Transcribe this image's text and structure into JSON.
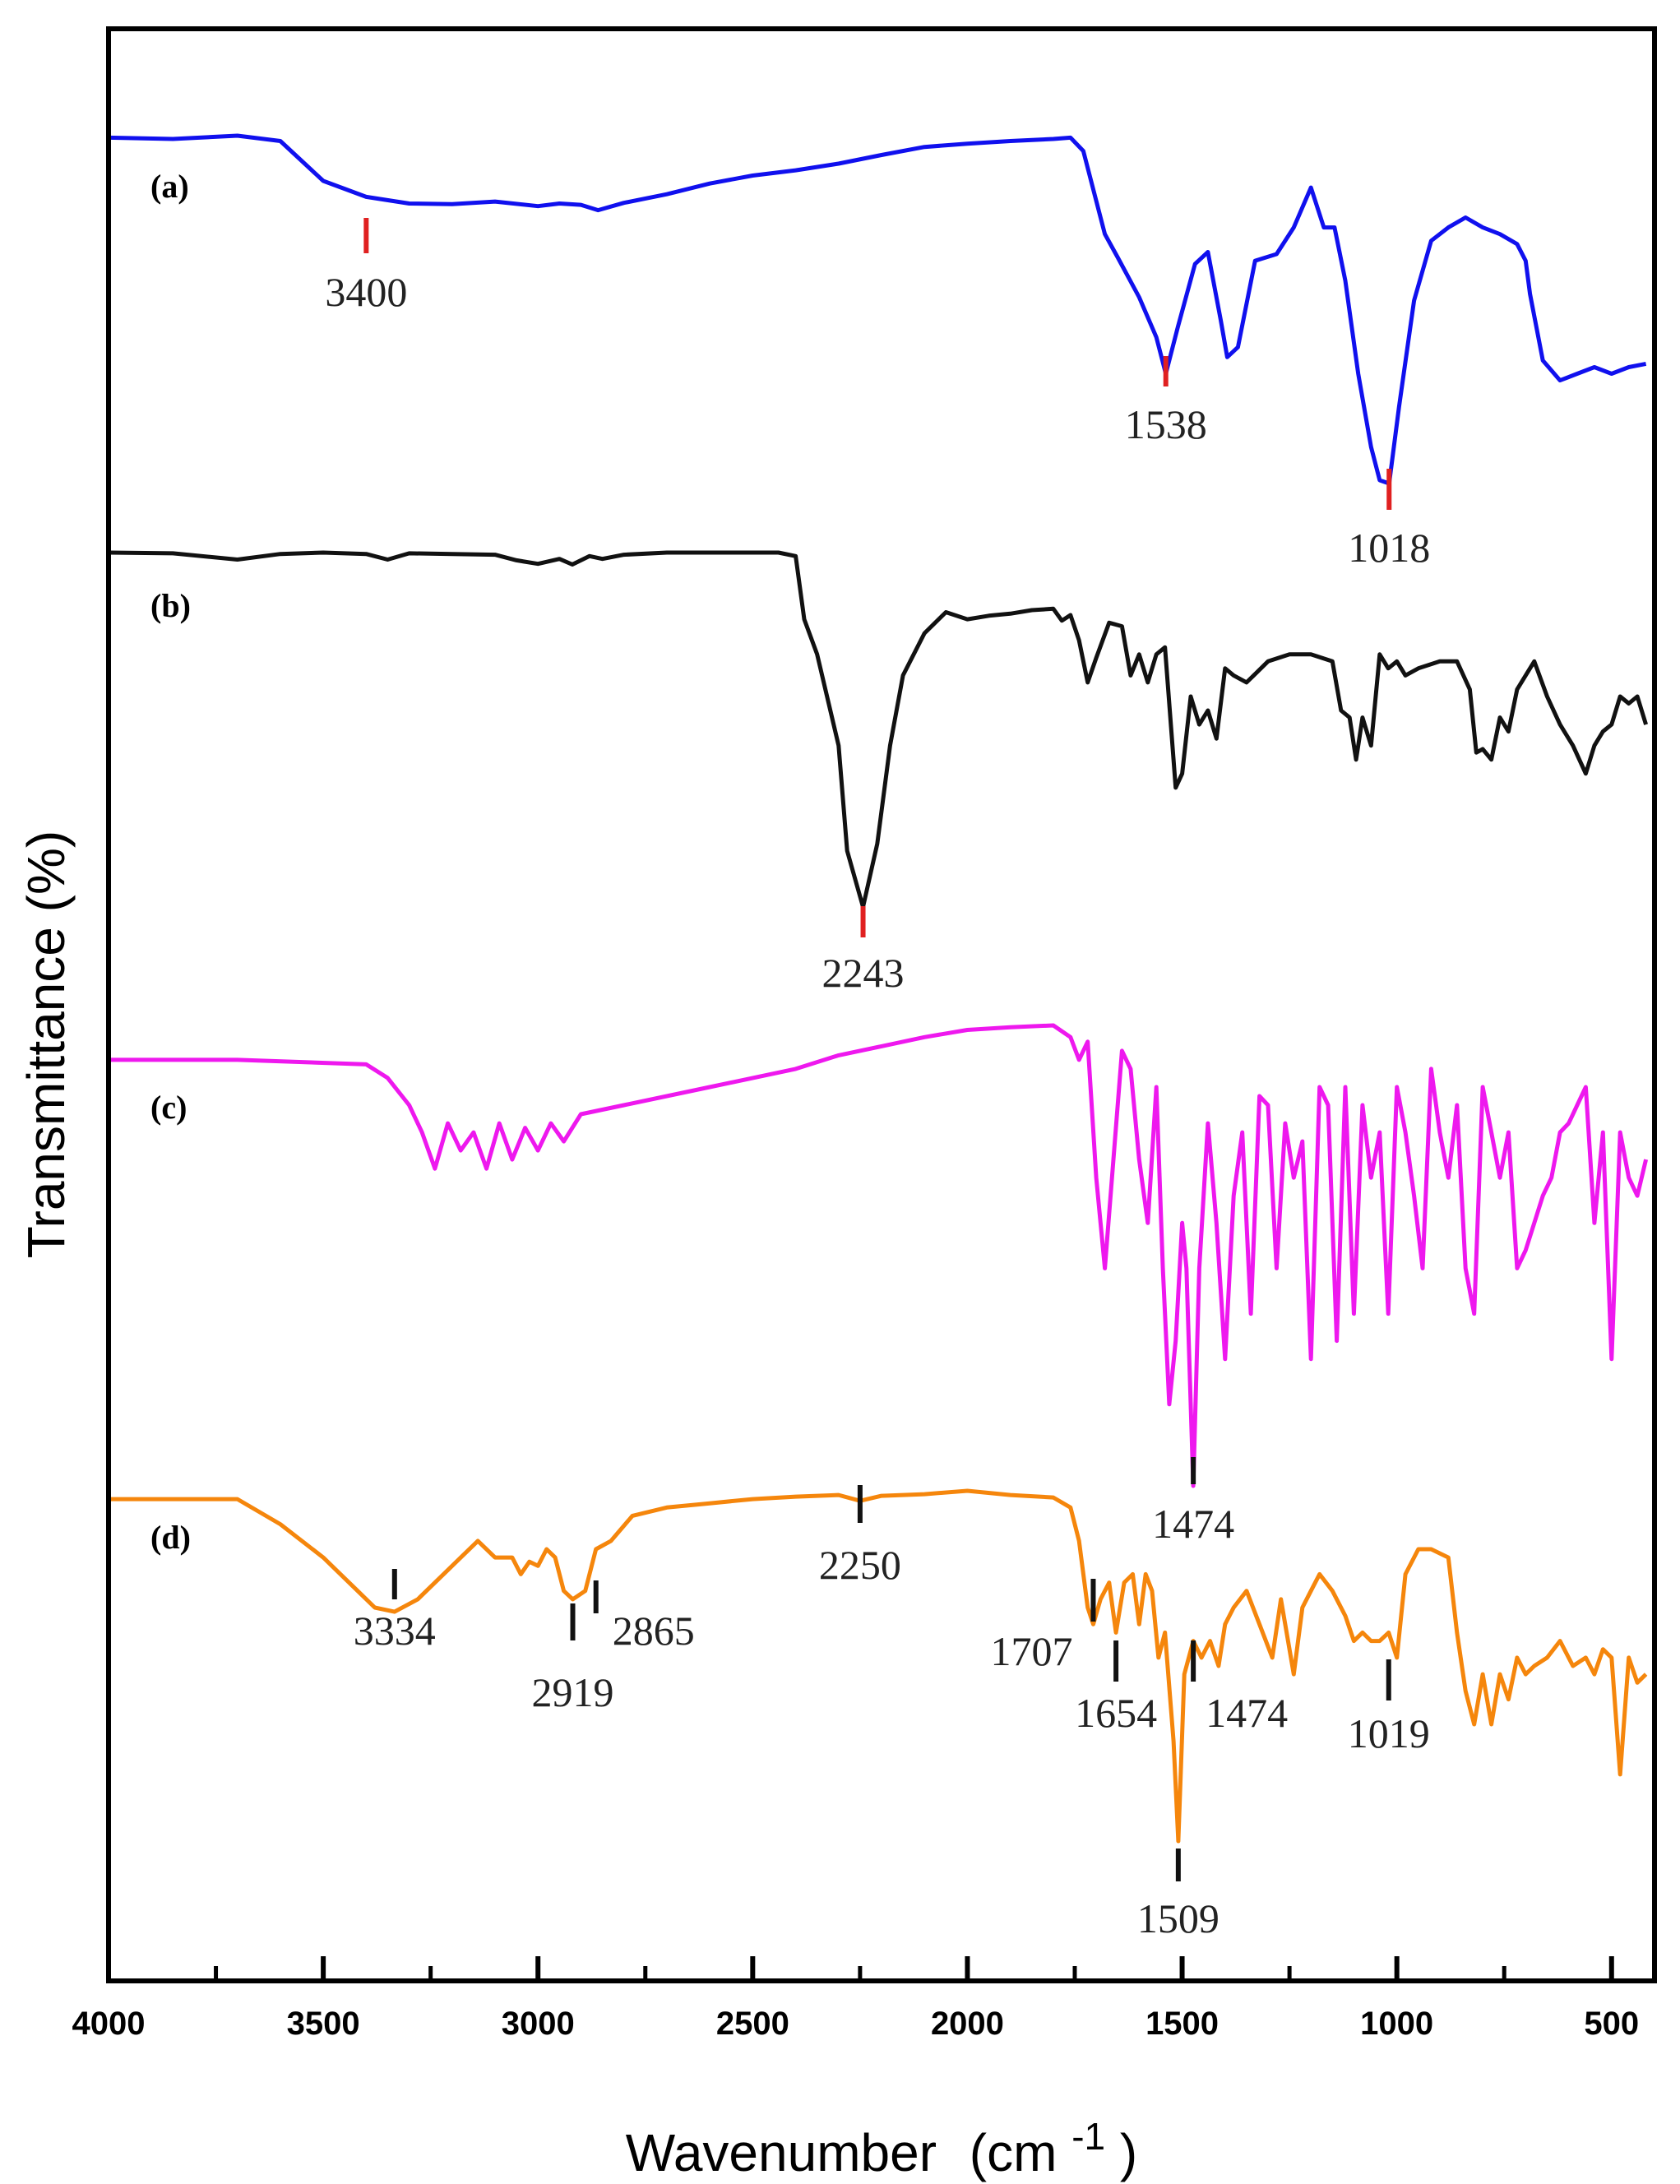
{
  "chart_data": {
    "type": "line",
    "title": "",
    "xlabel": "Wavenumber",
    "xlabel_unit_base": "(cm",
    "xlabel_unit_sup": "-1",
    "xlabel_unit_close": ")",
    "ylabel": "Transmittance  (%)",
    "xlim": [
      4000,
      400
    ],
    "x_ticks": [
      4000,
      3500,
      3000,
      2500,
      2000,
      1500,
      1000,
      500
    ],
    "x_minor_ticks": [
      3750,
      3250,
      2750,
      2250,
      1750,
      1250,
      750
    ],
    "y_ticks": [],
    "grid": false,
    "legend": "none",
    "series": [
      {
        "name": "(a)",
        "color": "#1010ee",
        "x": [
          4000,
          3850,
          3700,
          3600,
          3500,
          3400,
          3300,
          3200,
          3100,
          3000,
          2950,
          2900,
          2860,
          2800,
          2700,
          2600,
          2500,
          2400,
          2300,
          2200,
          2100,
          2000,
          1900,
          1800,
          1760,
          1730,
          1700,
          1680,
          1650,
          1600,
          1560,
          1538,
          1510,
          1470,
          1440,
          1410,
          1395,
          1370,
          1330,
          1280,
          1240,
          1200,
          1170,
          1145,
          1120,
          1090,
          1060,
          1040,
          1018,
          995,
          960,
          920,
          880,
          840,
          800,
          760,
          720,
          700,
          690,
          660,
          620,
          580,
          540,
          500,
          460,
          420
        ],
        "values": [
          97.5,
          97.3,
          97.8,
          97,
          91,
          88.6,
          87.6,
          87.5,
          87.9,
          87.2,
          87.6,
          87.4,
          86.6,
          87.7,
          89,
          90.6,
          91.8,
          92.6,
          93.6,
          94.9,
          96.1,
          96.6,
          97,
          97.3,
          97.5,
          95.5,
          88,
          83,
          79.5,
          73.5,
          67.5,
          62,
          69,
          78.5,
          80.3,
          70,
          64.5,
          66,
          79,
          80,
          84,
          90,
          84,
          84,
          76,
          62,
          51,
          46,
          45.5,
          57,
          73,
          82,
          84,
          85.5,
          84,
          83,
          81.5,
          79,
          74,
          64,
          61,
          62,
          63,
          62,
          63,
          63.5
        ]
      },
      {
        "name": "(b)",
        "color": "#111111",
        "x": [
          4000,
          3850,
          3700,
          3600,
          3500,
          3400,
          3350,
          3300,
          3200,
          3100,
          3050,
          3000,
          2950,
          2920,
          2880,
          2850,
          2800,
          2700,
          2600,
          2500,
          2440,
          2400,
          2380,
          2350,
          2300,
          2280,
          2243,
          2210,
          2180,
          2150,
          2100,
          2050,
          2000,
          1950,
          1900,
          1850,
          1800,
          1780,
          1760,
          1740,
          1720,
          1700,
          1670,
          1640,
          1620,
          1600,
          1580,
          1560,
          1540,
          1515,
          1500,
          1480,
          1460,
          1440,
          1420,
          1400,
          1380,
          1350,
          1300,
          1250,
          1200,
          1150,
          1130,
          1110,
          1095,
          1080,
          1060,
          1040,
          1020,
          1000,
          980,
          950,
          900,
          860,
          830,
          815,
          800,
          780,
          760,
          740,
          720,
          700,
          680,
          650,
          620,
          590,
          560,
          540,
          520,
          500,
          480,
          460,
          440,
          420
        ],
        "values": [
          97.5,
          97.4,
          96.5,
          97.3,
          97.5,
          97.3,
          96.5,
          97.4,
          97.3,
          97.2,
          96.4,
          95.9,
          96.6,
          95.8,
          97,
          96.6,
          97.2,
          97.5,
          97.5,
          97.5,
          97.5,
          97,
          88,
          83,
          70,
          55,
          47,
          56,
          70,
          80,
          86,
          89,
          88,
          88.5,
          88.8,
          89.3,
          89.5,
          87.8,
          88.6,
          85,
          79,
          82.5,
          87.5,
          87,
          80,
          83,
          79,
          83,
          84,
          64,
          66,
          77,
          73,
          75,
          71,
          81,
          80,
          79,
          82,
          83,
          83,
          82,
          75,
          74,
          68,
          74,
          70,
          83,
          81,
          82,
          80,
          81,
          82,
          82,
          78,
          69,
          69.5,
          68,
          74,
          72,
          78,
          80,
          82,
          77,
          73,
          70,
          66,
          70,
          72,
          73,
          77,
          76,
          77,
          73
        ]
      },
      {
        "name": "(c)",
        "color": "#ee18ee",
        "x": [
          4000,
          3700,
          3400,
          3350,
          3300,
          3270,
          3240,
          3210,
          3180,
          3150,
          3120,
          3090,
          3060,
          3030,
          3000,
          2970,
          2940,
          2900,
          2800,
          2600,
          2400,
          2300,
          2200,
          2100,
          2000,
          1900,
          1800,
          1760,
          1740,
          1720,
          1700,
          1680,
          1660,
          1640,
          1620,
          1600,
          1580,
          1560,
          1545,
          1530,
          1515,
          1500,
          1490,
          1474,
          1460,
          1440,
          1420,
          1400,
          1380,
          1360,
          1340,
          1320,
          1300,
          1280,
          1260,
          1240,
          1220,
          1200,
          1180,
          1160,
          1140,
          1120,
          1100,
          1080,
          1060,
          1040,
          1020,
          1000,
          980,
          960,
          940,
          920,
          900,
          880,
          860,
          840,
          820,
          800,
          780,
          760,
          740,
          720,
          700,
          680,
          660,
          640,
          620,
          600,
          580,
          560,
          540,
          520,
          500,
          480,
          460,
          440,
          420
        ],
        "values": [
          93,
          93,
          92.5,
          91,
          88,
          85,
          81,
          86,
          83,
          85,
          81,
          86,
          82,
          85.5,
          83,
          86,
          84,
          87,
          88,
          90,
          92,
          93.5,
          94.5,
          95.5,
          96.3,
          96.6,
          96.8,
          95.5,
          93,
          95,
          80,
          70,
          82,
          94,
          92,
          82,
          75,
          90,
          70,
          55,
          62,
          75,
          70,
          46,
          70,
          86,
          75,
          60,
          78,
          85,
          65,
          89,
          88,
          70,
          86,
          80,
          84,
          60,
          90,
          88,
          62,
          90,
          65,
          88,
          80,
          85,
          65,
          90,
          85,
          78,
          70,
          92,
          85,
          80,
          88,
          70,
          65,
          90,
          85,
          80,
          85,
          70,
          72,
          75,
          78,
          80,
          85,
          86,
          88,
          90,
          75,
          85,
          60,
          85,
          80,
          78,
          82
        ]
      },
      {
        "name": "(d)",
        "color": "#f5860c",
        "x": [
          4000,
          3850,
          3700,
          3600,
          3500,
          3420,
          3380,
          3334,
          3280,
          3200,
          3140,
          3100,
          3060,
          3040,
          3020,
          3000,
          2980,
          2960,
          2940,
          2919,
          2890,
          2865,
          2830,
          2780,
          2700,
          2600,
          2500,
          2400,
          2300,
          2250,
          2200,
          2100,
          2000,
          1900,
          1800,
          1760,
          1740,
          1720,
          1707,
          1690,
          1670,
          1654,
          1635,
          1615,
          1600,
          1585,
          1570,
          1555,
          1540,
          1520,
          1509,
          1495,
          1474,
          1455,
          1435,
          1415,
          1400,
          1380,
          1350,
          1320,
          1290,
          1270,
          1240,
          1220,
          1200,
          1180,
          1150,
          1120,
          1100,
          1080,
          1060,
          1040,
          1019,
          1000,
          980,
          950,
          920,
          880,
          860,
          840,
          820,
          800,
          780,
          760,
          740,
          720,
          700,
          680,
          650,
          620,
          590,
          560,
          540,
          520,
          500,
          480,
          460,
          440,
          420
        ],
        "values": [
          91,
          91,
          91,
          88,
          84,
          80,
          78,
          77.5,
          79,
          83,
          86,
          84,
          84,
          82,
          83.5,
          83,
          85,
          84,
          80,
          79,
          80,
          85,
          86,
          89,
          90,
          90.5,
          91,
          91.3,
          91.5,
          90.8,
          91.4,
          91.6,
          92,
          91.5,
          91.2,
          90,
          86,
          78,
          76,
          79,
          81,
          75,
          81,
          82,
          76,
          82,
          80,
          72,
          75,
          62,
          50,
          70,
          74,
          72,
          74,
          71,
          76,
          78,
          80,
          76,
          72,
          79,
          70,
          78,
          80,
          82,
          80,
          77,
          74,
          75,
          74,
          74,
          75,
          72,
          82,
          85,
          85,
          84,
          75,
          68,
          64,
          70,
          64,
          70,
          67,
          72,
          70,
          71,
          72,
          74,
          71,
          72,
          70,
          73,
          72,
          58,
          72,
          69,
          70
        ]
      }
    ],
    "panel_labels": [
      "(a)",
      "(b)",
      "(c)",
      "(d)"
    ],
    "peak_annotations": [
      {
        "series": "(a)",
        "label": "3400",
        "x": 3400,
        "color": "#e02020"
      },
      {
        "series": "(a)",
        "label": "1538",
        "x": 1538,
        "color": "#e02020"
      },
      {
        "series": "(a)",
        "label": "1018",
        "x": 1018,
        "color": "#e02020"
      },
      {
        "series": "(b)",
        "label": "2243",
        "x": 2243,
        "color": "#e02020"
      },
      {
        "series": "(c)",
        "label": "1474",
        "x": 1474,
        "color": "#111111"
      },
      {
        "series": "(d)",
        "label": "3334",
        "x": 3334,
        "color": "#111111"
      },
      {
        "series": "(d)",
        "label": "2919",
        "x": 2919,
        "color": "#111111"
      },
      {
        "series": "(d)",
        "label": "2865",
        "x": 2865,
        "color": "#111111"
      },
      {
        "series": "(d)",
        "label": "2250",
        "x": 2250,
        "color": "#111111"
      },
      {
        "series": "(d)",
        "label": "1707",
        "x": 1707,
        "color": "#111111"
      },
      {
        "series": "(d)",
        "label": "1654",
        "x": 1654,
        "color": "#111111"
      },
      {
        "series": "(d)",
        "label": "1474",
        "x": 1474,
        "color": "#111111"
      },
      {
        "series": "(d)",
        "label": "1019",
        "x": 1019,
        "color": "#111111"
      },
      {
        "series": "(d)",
        "label": "1509",
        "x": 1509,
        "color": "#111111"
      }
    ]
  }
}
